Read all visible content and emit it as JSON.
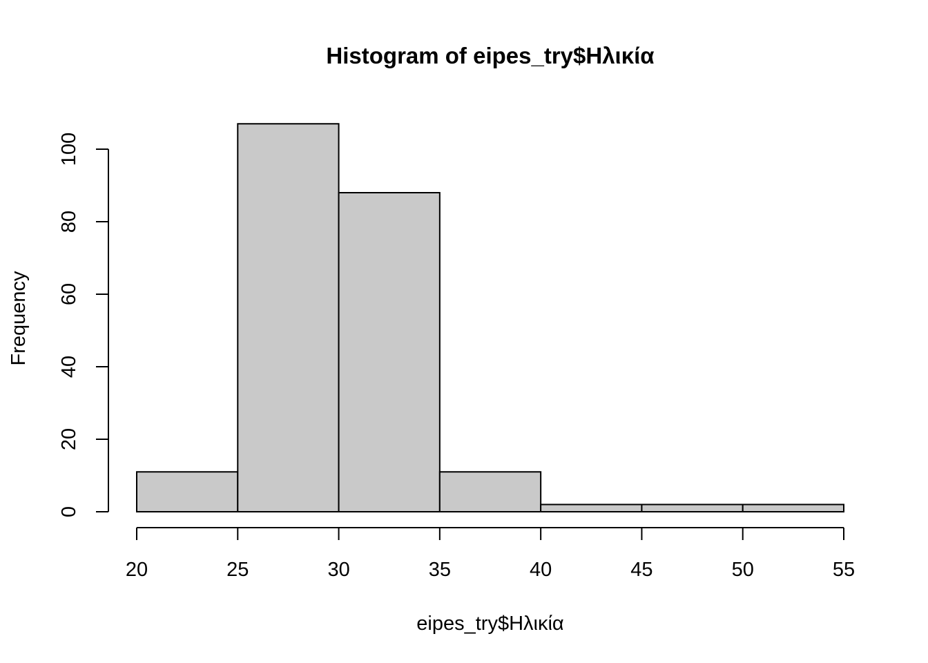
{
  "chart_data": {
    "type": "bar",
    "title": "Histogram of eipes_try$Ηλικία",
    "xlabel": "eipes_try$Ηλικία",
    "ylabel": "Frequency",
    "bins": [
      {
        "from": 20,
        "to": 25,
        "count": 11
      },
      {
        "from": 25,
        "to": 30,
        "count": 107
      },
      {
        "from": 30,
        "to": 35,
        "count": 88
      },
      {
        "from": 35,
        "to": 40,
        "count": 11
      },
      {
        "from": 40,
        "to": 45,
        "count": 2
      },
      {
        "from": 45,
        "to": 50,
        "count": 2
      },
      {
        "from": 50,
        "to": 55,
        "count": 2
      }
    ],
    "x_ticks": [
      "20",
      "25",
      "30",
      "35",
      "40",
      "45",
      "50",
      "55"
    ],
    "y_ticks": [
      "0",
      "20",
      "40",
      "60",
      "80",
      "100"
    ],
    "xlim": [
      20,
      55
    ],
    "ylim": [
      0,
      100
    ],
    "grid": false,
    "bar_color": "#c9c9c9",
    "outline_color": "#000000"
  }
}
